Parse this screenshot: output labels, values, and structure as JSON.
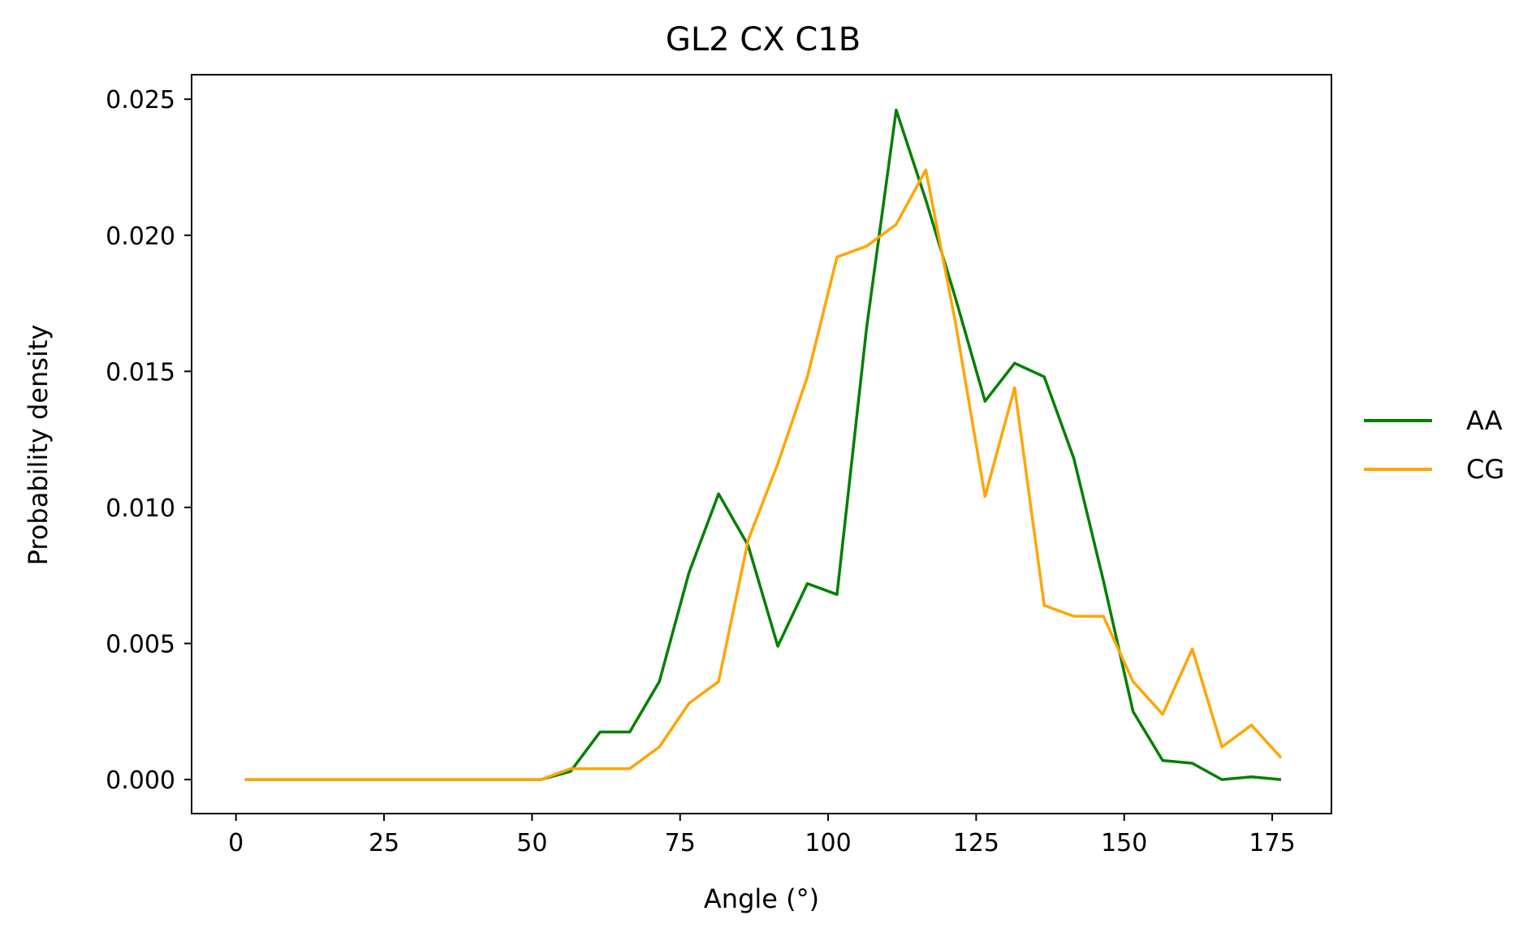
{
  "chart_data": {
    "type": "line",
    "title": "GL2 CX C1B",
    "xlabel": "Angle (°)",
    "ylabel": "Probability density",
    "xlim": [
      -7.5,
      185
    ],
    "ylim": [
      -0.00125,
      0.0259
    ],
    "xticks": [
      0,
      25,
      50,
      75,
      100,
      125,
      150,
      175
    ],
    "xtick_labels": [
      "0",
      "25",
      "50",
      "75",
      "100",
      "125",
      "150",
      "175"
    ],
    "yticks": [
      0.0,
      0.005,
      0.01,
      0.015,
      0.02,
      0.025
    ],
    "ytick_labels": [
      "0.000",
      "0.005",
      "0.010",
      "0.015",
      "0.020",
      "0.025"
    ],
    "grid": false,
    "legend_position": "right",
    "x": [
      1.5,
      6.5,
      11.5,
      16.5,
      21.5,
      26.5,
      31.5,
      36.5,
      41.5,
      46.5,
      51.5,
      56.5,
      61.5,
      66.5,
      71.5,
      76.5,
      81.5,
      86.5,
      91.5,
      96.5,
      101.5,
      106.5,
      111.5,
      116.5,
      121.5,
      126.5,
      131.5,
      136.5,
      141.5,
      146.5,
      151.5,
      156.5,
      161.5,
      166.5,
      171.5,
      176.5
    ],
    "series": [
      {
        "name": "AA",
        "color": "#008000",
        "values": [
          0,
          0,
          0,
          0,
          0,
          0,
          0,
          0,
          0,
          0,
          0,
          0.0003,
          0.00175,
          0.00175,
          0.0036,
          0.0076,
          0.0105,
          0.0086,
          0.0049,
          0.0072,
          0.0068,
          0.0166,
          0.0246,
          0.0213,
          0.0177,
          0.0139,
          0.0153,
          0.0148,
          0.0118,
          0.0073,
          0.0025,
          0.0007,
          0.0006,
          0,
          0.0001,
          0
        ]
      },
      {
        "name": "CG",
        "color": "#ffa500",
        "values": [
          0,
          0,
          0,
          0,
          0,
          0,
          0,
          0,
          0,
          0,
          0,
          0.0004,
          0.0004,
          0.0004,
          0.0012,
          0.0028,
          0.0036,
          0.0088,
          0.0116,
          0.0148,
          0.0192,
          0.0196,
          0.0204,
          0.0224,
          0.0168,
          0.0104,
          0.0144,
          0.0064,
          0.006,
          0.006,
          0.0036,
          0.0024,
          0.0048,
          0.0012,
          0.002,
          0.0008
        ]
      }
    ]
  }
}
